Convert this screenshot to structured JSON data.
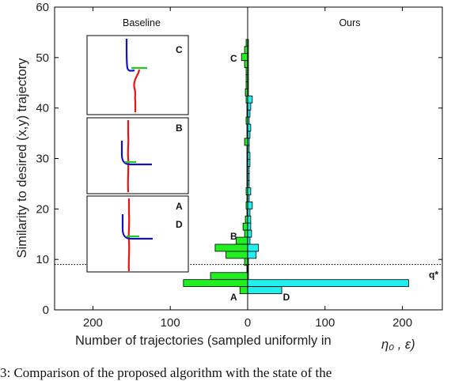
{
  "chart_data": {
    "type": "bar",
    "orientation": "horizontal",
    "xlabel": "Number of trajectories (sampled uniformly in",
    "xlabel_math": "η₀ , ε)",
    "ylabel": "Similarity to desired (x,y) trajectory",
    "xlim": [
      250,
      -250
    ],
    "ylim": [
      0,
      60
    ],
    "x_ticks": [
      "200",
      "100",
      "0",
      "100",
      "200"
    ],
    "x_tick_values": [
      200,
      100,
      0,
      -100,
      -200
    ],
    "y_ticks": [
      "0",
      "10",
      "20",
      "30",
      "40",
      "50",
      "60"
    ],
    "y_tick_values": [
      0,
      10,
      20,
      30,
      40,
      50,
      60
    ],
    "grid": false,
    "left_panel_title": "Baseline",
    "right_panel_title": "Ours",
    "threshold": {
      "y": 9,
      "label": "q*"
    },
    "bin_width": 1.4,
    "series": [
      {
        "name": "Baseline",
        "color": "#22ee22",
        "bins": [
          {
            "y": 52.9,
            "count": 2
          },
          {
            "y": 51.5,
            "count": 4
          },
          {
            "y": 50.1,
            "count": 8
          },
          {
            "y": 48.7,
            "count": 4
          },
          {
            "y": 47.3,
            "count": 2
          },
          {
            "y": 45.9,
            "count": 2
          },
          {
            "y": 44.5,
            "count": 2
          },
          {
            "y": 43.1,
            "count": 3
          },
          {
            "y": 41.7,
            "count": 2
          },
          {
            "y": 40.3,
            "count": 1
          },
          {
            "y": 38.9,
            "count": 1
          },
          {
            "y": 37.5,
            "count": 2
          },
          {
            "y": 36.1,
            "count": 1
          },
          {
            "y": 34.7,
            "count": 1
          },
          {
            "y": 33.3,
            "count": 4
          },
          {
            "y": 31.9,
            "count": 1
          },
          {
            "y": 30.5,
            "count": 1
          },
          {
            "y": 29.1,
            "count": 1
          },
          {
            "y": 27.7,
            "count": 1
          },
          {
            "y": 26.3,
            "count": 1
          },
          {
            "y": 24.9,
            "count": 1
          },
          {
            "y": 23.5,
            "count": 2
          },
          {
            "y": 22.1,
            "count": 1
          },
          {
            "y": 20.7,
            "count": 2
          },
          {
            "y": 19.3,
            "count": 1
          },
          {
            "y": 17.9,
            "count": 3
          },
          {
            "y": 16.5,
            "count": 6
          },
          {
            "y": 15.1,
            "count": 4
          },
          {
            "y": 13.7,
            "count": 15
          },
          {
            "y": 12.3,
            "count": 42
          },
          {
            "y": 10.9,
            "count": 28
          },
          {
            "y": 9.5,
            "count": 4
          },
          {
            "y": 8.1,
            "count": 1
          },
          {
            "y": 6.7,
            "count": 48
          },
          {
            "y": 5.3,
            "count": 83
          },
          {
            "y": 3.9,
            "count": 10
          }
        ]
      },
      {
        "name": "Ours",
        "color": "#22eeee",
        "bins": [
          {
            "y": 52.9,
            "count": 1
          },
          {
            "y": 51.5,
            "count": 1
          },
          {
            "y": 50.1,
            "count": 1
          },
          {
            "y": 48.7,
            "count": 1
          },
          {
            "y": 47.3,
            "count": 1
          },
          {
            "y": 45.9,
            "count": 1
          },
          {
            "y": 44.5,
            "count": 1
          },
          {
            "y": 43.1,
            "count": 1
          },
          {
            "y": 41.7,
            "count": 6
          },
          {
            "y": 40.3,
            "count": 4
          },
          {
            "y": 38.9,
            "count": 3
          },
          {
            "y": 37.5,
            "count": 2
          },
          {
            "y": 36.1,
            "count": 4
          },
          {
            "y": 34.7,
            "count": 3
          },
          {
            "y": 33.3,
            "count": 2
          },
          {
            "y": 31.9,
            "count": 2
          },
          {
            "y": 30.5,
            "count": 3
          },
          {
            "y": 29.1,
            "count": 3
          },
          {
            "y": 27.7,
            "count": 2
          },
          {
            "y": 26.3,
            "count": 2
          },
          {
            "y": 24.9,
            "count": 2
          },
          {
            "y": 23.5,
            "count": 4
          },
          {
            "y": 22.1,
            "count": 2
          },
          {
            "y": 20.7,
            "count": 6
          },
          {
            "y": 19.3,
            "count": 3
          },
          {
            "y": 17.9,
            "count": 4
          },
          {
            "y": 16.5,
            "count": 4
          },
          {
            "y": 15.1,
            "count": 5
          },
          {
            "y": 13.7,
            "count": 3
          },
          {
            "y": 12.3,
            "count": 14
          },
          {
            "y": 10.9,
            "count": 11
          },
          {
            "y": 9.5,
            "count": 1
          },
          {
            "y": 8.1,
            "count": 1
          },
          {
            "y": 6.7,
            "count": 1
          },
          {
            "y": 5.3,
            "count": 208
          },
          {
            "y": 3.9,
            "count": 44
          }
        ]
      }
    ],
    "annotations": [
      {
        "text": "C",
        "x": 18,
        "y": 49.8
      },
      {
        "text": "B",
        "x": 18,
        "y": 14.6
      },
      {
        "text": "A",
        "x": 18,
        "y": 2.5
      },
      {
        "text": "D",
        "x": -50,
        "y": 2.5
      }
    ],
    "insets": [
      {
        "label": "C",
        "colors": {
          "red": "#ee1111",
          "blue": "#1111cc",
          "green": "#22cc22"
        }
      },
      {
        "label": "B",
        "colors": {
          "red": "#ee1111",
          "blue": "#1111cc",
          "green": "#22cc22"
        }
      },
      {
        "labels": [
          "A",
          "D"
        ],
        "colors": {
          "red": "#ee1111",
          "blue": "#1111cc",
          "green": "#22cc22"
        }
      }
    ]
  },
  "caption": "3: Comparison of the proposed algorithm with the state of the"
}
